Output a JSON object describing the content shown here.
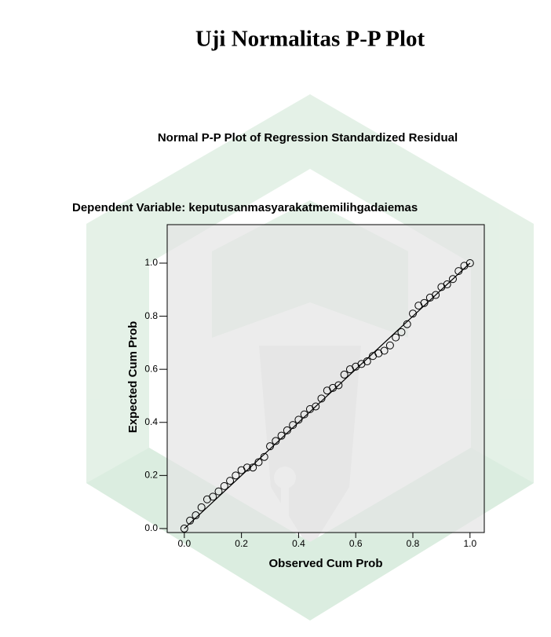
{
  "document_title": "Uji Normalitas P-P Plot",
  "chart_data": {
    "type": "scatter",
    "title": "Normal P-P Plot of Regression Standardized Residual",
    "subtitle": "Dependent Variable: keputusanmasyarakatmemilihgadaiemas",
    "x_label": "Observed Cum Prob",
    "y_label": "Expected Cum Prob",
    "x": [
      0.0,
      0.02,
      0.04,
      0.06,
      0.08,
      0.1,
      0.12,
      0.14,
      0.16,
      0.18,
      0.2,
      0.22,
      0.24,
      0.26,
      0.28,
      0.3,
      0.32,
      0.34,
      0.36,
      0.38,
      0.4,
      0.42,
      0.44,
      0.46,
      0.48,
      0.5,
      0.52,
      0.54,
      0.56,
      0.58,
      0.6,
      0.62,
      0.64,
      0.66,
      0.68,
      0.7,
      0.72,
      0.74,
      0.76,
      0.78,
      0.8,
      0.82,
      0.84,
      0.86,
      0.88,
      0.9,
      0.92,
      0.94,
      0.96,
      0.98,
      1.0
    ],
    "values": [
      0.0,
      0.03,
      0.05,
      0.08,
      0.11,
      0.12,
      0.14,
      0.16,
      0.18,
      0.2,
      0.22,
      0.23,
      0.23,
      0.25,
      0.27,
      0.31,
      0.33,
      0.35,
      0.37,
      0.39,
      0.41,
      0.43,
      0.45,
      0.46,
      0.49,
      0.52,
      0.53,
      0.54,
      0.58,
      0.6,
      0.61,
      0.62,
      0.63,
      0.65,
      0.66,
      0.67,
      0.69,
      0.72,
      0.74,
      0.77,
      0.81,
      0.84,
      0.85,
      0.87,
      0.88,
      0.91,
      0.92,
      0.94,
      0.97,
      0.99,
      1.0
    ],
    "reference_line": {
      "x": [
        0,
        1
      ],
      "y": [
        0,
        1
      ]
    },
    "xlim": [
      -0.06,
      1.05
    ],
    "ylim": [
      -0.015,
      1.145
    ],
    "xticks": [
      {
        "value": 0,
        "label": "0.0"
      },
      {
        "value": 0.2,
        "label": "0.2"
      },
      {
        "value": 0.4,
        "label": "0.4"
      },
      {
        "value": 0.6,
        "label": "0.6"
      },
      {
        "value": 0.8,
        "label": "0.8"
      },
      {
        "value": 1,
        "label": "1.0"
      }
    ],
    "yticks": [
      {
        "value": 0,
        "label": "0.0"
      },
      {
        "value": 0.2,
        "label": "0.2"
      },
      {
        "value": 0.4,
        "label": "0.4"
      },
      {
        "value": 0.6,
        "label": "0.6"
      },
      {
        "value": 0.8,
        "label": "0.8"
      },
      {
        "value": 1,
        "label": "1.0"
      }
    ],
    "marker_color": "#000000",
    "plot_background": "#e4e4e4"
  }
}
